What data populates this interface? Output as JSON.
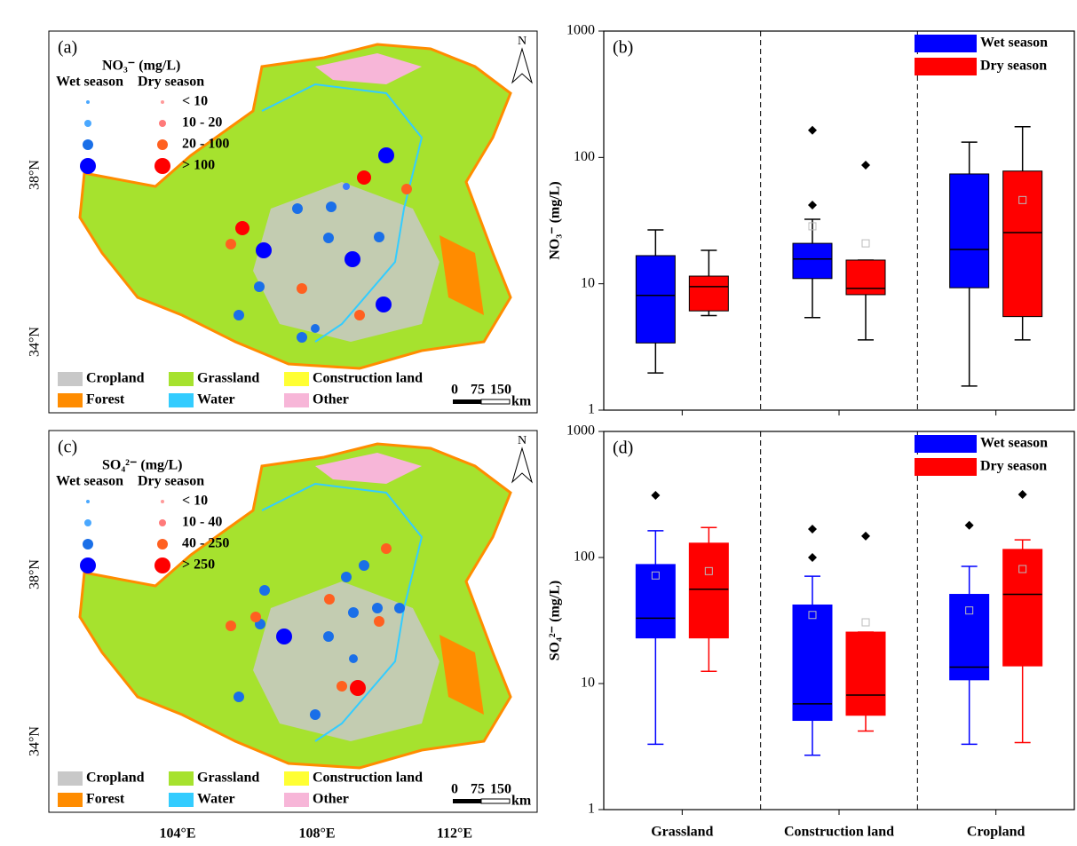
{
  "maps": [
    {
      "label": "(a)",
      "title": "NO₃⁻ (mg/L)",
      "wet_label": "Wet season",
      "dry_label": "Dry season",
      "classes": [
        "< 10",
        "10 - 20",
        "20 - 100",
        "> 100"
      ],
      "north": "N",
      "lat_labels": [
        "38°N",
        "34°N"
      ],
      "landuse": [
        {
          "name": "Cropland",
          "color": "#c8c8c8"
        },
        {
          "name": "Grassland",
          "color": "#a6e22e"
        },
        {
          "name": "Construction land",
          "color": "#ffff33"
        },
        {
          "name": "Forest",
          "color": "#ff8c00"
        },
        {
          "name": "Water",
          "color": "#33ccff"
        },
        {
          "name": "Other",
          "color": "#f7b6d8"
        }
      ],
      "scale_labels": [
        "0",
        "75",
        "150"
      ],
      "scale_unit": "km"
    },
    {
      "label": "(c)",
      "title": "SO₄²⁻ (mg/L)",
      "wet_label": "Wet season",
      "dry_label": "Dry season",
      "classes": [
        "< 10",
        "10 - 40",
        "40 - 250",
        "> 250"
      ],
      "north": "N",
      "lat_labels": [
        "38°N",
        "34°N"
      ],
      "landuse": [
        {
          "name": "Cropland",
          "color": "#c8c8c8"
        },
        {
          "name": "Grassland",
          "color": "#a6e22e"
        },
        {
          "name": "Construction land",
          "color": "#ffff33"
        },
        {
          "name": "Forest",
          "color": "#ff8c00"
        },
        {
          "name": "Water",
          "color": "#33ccff"
        },
        {
          "name": "Other",
          "color": "#f7b6d8"
        }
      ],
      "scale_labels": [
        "0",
        "75",
        "150"
      ],
      "scale_unit": "km",
      "lon_labels": [
        "104°E",
        "108°E",
        "112°E"
      ]
    }
  ],
  "chart_data": [
    {
      "type": "box",
      "label": "(b)",
      "ylabel": "NO₃⁻ (mg/L)",
      "log_scale": true,
      "ylim": [
        1,
        1000
      ],
      "yticks": [
        1,
        10,
        100,
        1000
      ],
      "legend": "top-right",
      "colored_whiskers": false,
      "series": [
        {
          "name": "Wet season",
          "color": "#0000ff",
          "whisker_low": [
            1.97,
            5.4,
            1.55
          ],
          "q1": [
            3.4,
            11,
            9.3
          ],
          "median": [
            8.1,
            15.7,
            18.7
          ],
          "q3": [
            16.7,
            20.9,
            74
          ],
          "whisker_high": [
            26.7,
            32.4,
            132
          ],
          "mean": [
            null,
            28.5,
            null
          ],
          "outliers": [
            [],
            [
              164,
              42
            ],
            []
          ]
        },
        {
          "name": "Dry season",
          "color": "#ff0000",
          "whisker_low": [
            5.6,
            3.6,
            3.6
          ],
          "q1": [
            6.1,
            8.2,
            5.5
          ],
          "median": [
            9.5,
            9.2,
            25.4
          ],
          "q3": [
            11.5,
            15.4,
            78
          ],
          "whisker_high": [
            18.4,
            15.4,
            175
          ],
          "mean": [
            null,
            20.9,
            46
          ],
          "outliers": [
            [],
            [
              87
            ],
            []
          ]
        }
      ]
    },
    {
      "type": "box",
      "label": "(d)",
      "ylabel": "SO₄²⁻ (mg/L)",
      "log_scale": true,
      "ylim": [
        1,
        1000
      ],
      "yticks": [
        1,
        10,
        100,
        1000
      ],
      "legend": "top-right",
      "colored_whiskers": true,
      "categories": [
        "Grassland",
        "Construction land",
        "Cropland"
      ],
      "series": [
        {
          "name": "Wet season",
          "color": "#0000ff",
          "whisker_low": [
            3.3,
            2.7,
            3.3
          ],
          "q1": [
            23,
            5.1,
            10.7
          ],
          "median": [
            33,
            6.9,
            13.5
          ],
          "q3": [
            88,
            42,
            51
          ],
          "whisker_high": [
            163,
            71,
            85
          ],
          "mean": [
            72,
            35,
            38
          ],
          "outliers": [
            [
              311
            ],
            [
              168,
              100
            ],
            [
              180
            ]
          ]
        },
        {
          "name": "Dry season",
          "color": "#ff0000",
          "whisker_low": [
            12.5,
            4.2,
            3.4
          ],
          "q1": [
            23,
            5.6,
            13.8
          ],
          "median": [
            56,
            8.1,
            51
          ],
          "q3": [
            130,
            25.6,
            116
          ],
          "whisker_high": [
            173,
            25.6,
            138
          ],
          "mean": [
            78,
            30.6,
            81
          ],
          "outliers": [
            [],
            [
              148
            ],
            [
              316
            ]
          ]
        }
      ]
    }
  ]
}
